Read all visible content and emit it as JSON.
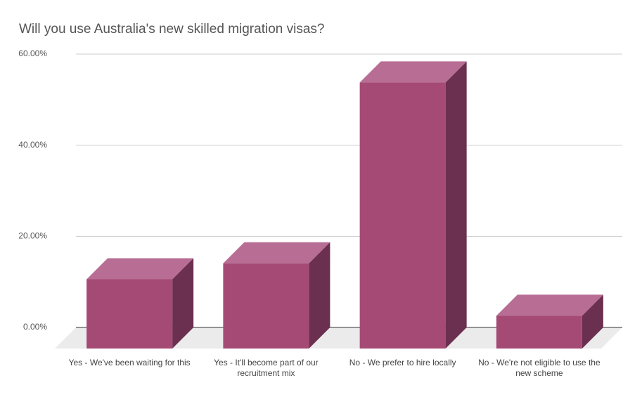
{
  "chart_data": {
    "type": "bar3d",
    "title": "Will you use Australia's new skilled migration visas?",
    "categories": [
      "Yes - We've been waiting for this",
      "Yes - It'll become part of our recruitment mix",
      "No - We prefer to hire locally",
      "No - We're not eligible to use the new scheme"
    ],
    "values": [
      15.2,
      18.7,
      58.4,
      7.2
    ],
    "color": "#a54a74",
    "ylim": [
      0,
      60
    ],
    "yticks": [
      {
        "value": 0,
        "label": "0.00%"
      },
      {
        "value": 20,
        "label": "20.00%"
      },
      {
        "value": 40,
        "label": "40.00%"
      },
      {
        "value": 60,
        "label": "60.00%"
      }
    ],
    "grid": true
  }
}
